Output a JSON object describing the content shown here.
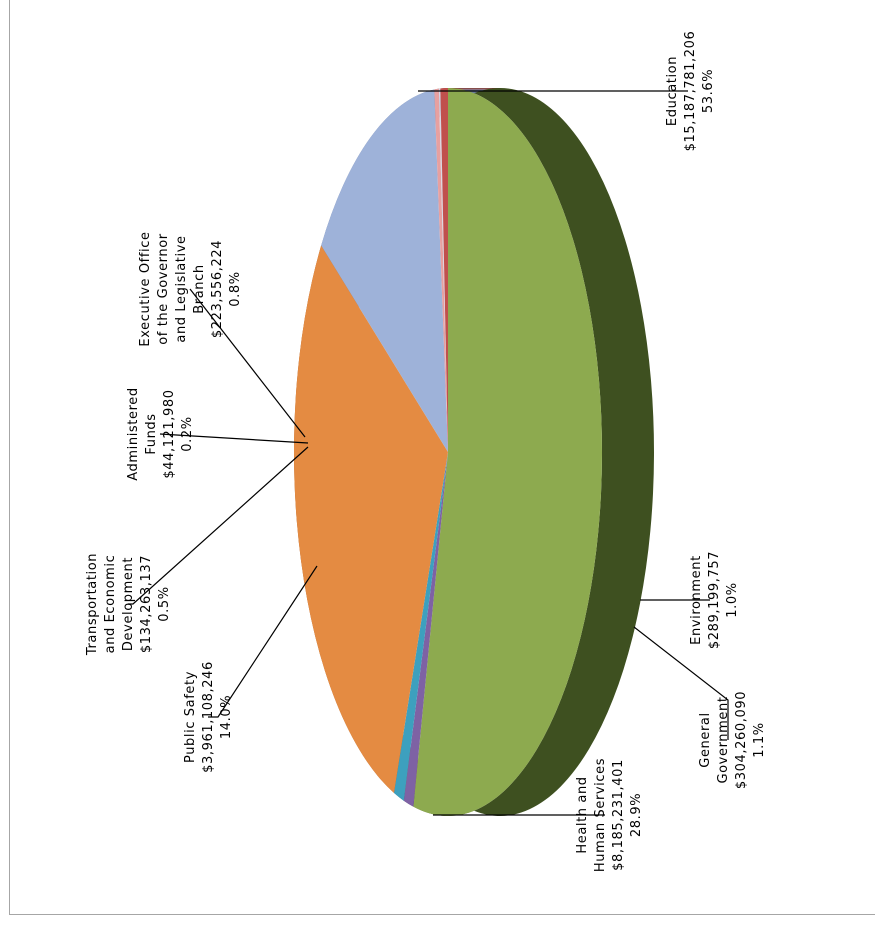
{
  "chart_data": {
    "type": "pie",
    "orientation": "rotated-90-clockwise",
    "style": "3d-exploded",
    "slices": [
      {
        "category": [
          "Education"
        ],
        "amount": "$15,187,781,206",
        "percent": "53.6%",
        "value": 15187781206,
        "color": "#8DAA4F",
        "shade": "#3E5020"
      },
      {
        "category": [
          "Environment"
        ],
        "amount": "$289,199,757",
        "percent": "1.0%",
        "value": 289199757,
        "color": "#7E62A4",
        "shade": "#3C2A55"
      },
      {
        "category": [
          "General",
          "Government"
        ],
        "amount": "$304,260,090",
        "percent": "1.1%",
        "value": 304260090,
        "color": "#3DA0BE",
        "shade": "#1E5565"
      },
      {
        "category": [
          "Health and",
          "Human Services"
        ],
        "amount": "$8,185,231,401",
        "percent": "28.9%",
        "value": 8185231401,
        "color": "#E48B42",
        "shade": "#9A5522"
      },
      {
        "category": [
          "Public Safety"
        ],
        "amount": "$3,961,108,246",
        "percent": "14.0%",
        "value": 3961108246,
        "color": "#9EB2D9",
        "shade": "#6A7BA0"
      },
      {
        "category": [
          "Transportation",
          "and Economic",
          "Development"
        ],
        "amount": "$134,263,137",
        "percent": "0.5%",
        "value": 134263137,
        "color": "#E7A0A0",
        "shade": "#B06A6A"
      },
      {
        "category": [
          "Administered",
          "Funds"
        ],
        "amount": "$44,121,980",
        "percent": "0.2%",
        "value": 44121980,
        "color": "#D5D7E6",
        "shade": "#9A9CB0"
      },
      {
        "category": [
          "Executive Office",
          "of the Governor",
          "and Legislative",
          "Branch"
        ],
        "amount": "$223,556,224",
        "percent": "0.8%",
        "value": 223556224,
        "color": "#C0504D",
        "shade": "#7A2B2A"
      }
    ]
  }
}
